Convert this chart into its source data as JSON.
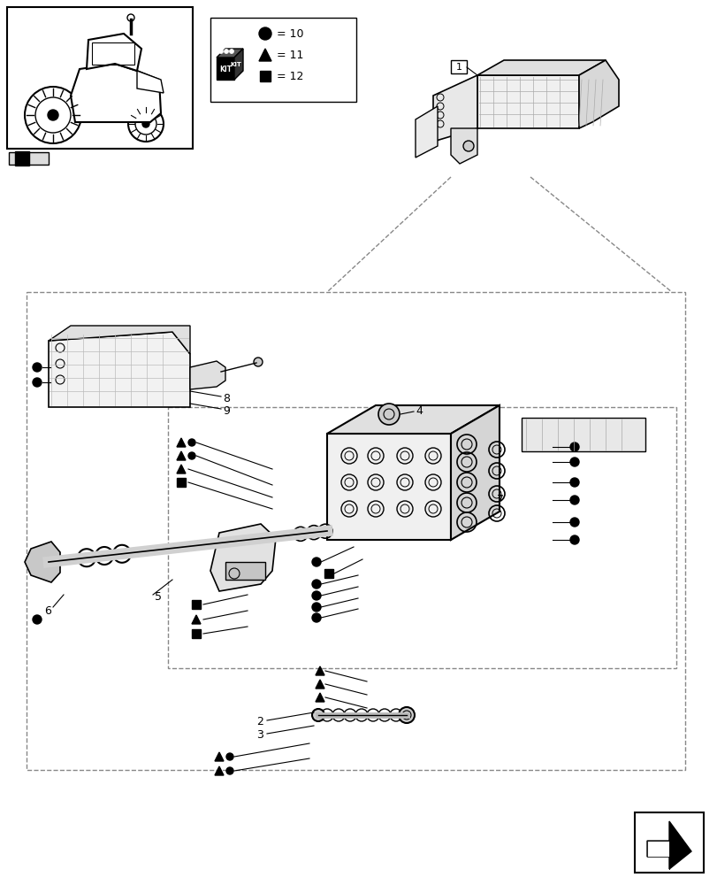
{
  "bg_color": "#ffffff",
  "line_color": "#000000",
  "figure_size": [
    8.12,
    10.0
  ],
  "dpi": 100
}
